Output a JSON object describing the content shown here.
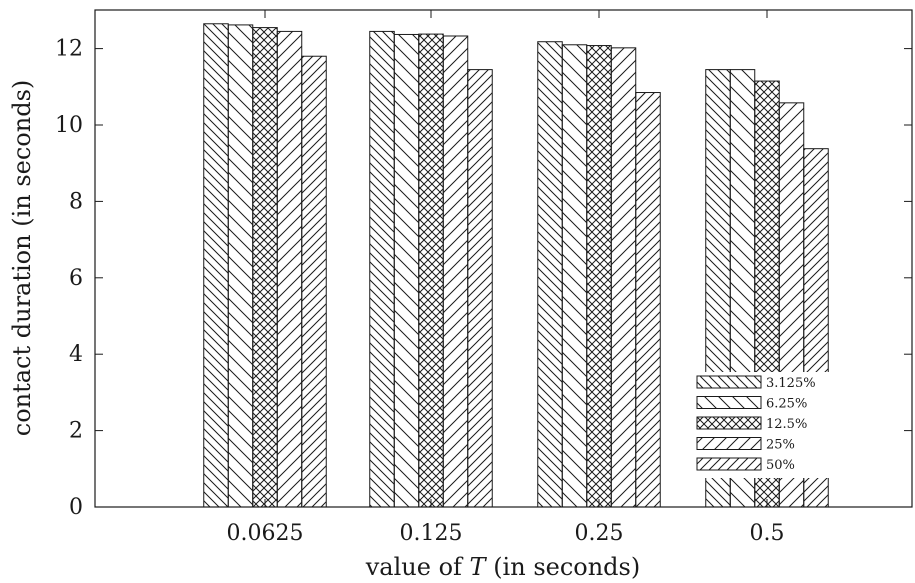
{
  "chart_data": {
    "type": "bar",
    "categories": [
      "0.0625",
      "0.125",
      "0.25",
      "0.5"
    ],
    "series": [
      {
        "name": "3.125%",
        "values": [
          12.65,
          12.45,
          12.18,
          11.45
        ]
      },
      {
        "name": "6.25%",
        "values": [
          12.62,
          12.37,
          12.1,
          11.45
        ]
      },
      {
        "name": "12.5%",
        "values": [
          12.55,
          12.38,
          12.08,
          11.15
        ]
      },
      {
        "name": "25%",
        "values": [
          12.45,
          12.33,
          12.02,
          10.58
        ]
      },
      {
        "name": "50%",
        "values": [
          11.8,
          11.45,
          10.85,
          9.38
        ]
      }
    ],
    "ylabel": "contact duration (in seconds)",
    "xlabel_prefix": "value of ",
    "xlabel_var": "T",
    "xlabel_suffix": " (in seconds)",
    "yticks": [
      0,
      2,
      4,
      6,
      8,
      10,
      12
    ],
    "ylim": [
      0,
      13
    ],
    "legend_position": "bottom-right",
    "grid": false,
    "colors": {
      "bar_fill": "#ffffff",
      "stroke": "#1a1a1a"
    }
  }
}
